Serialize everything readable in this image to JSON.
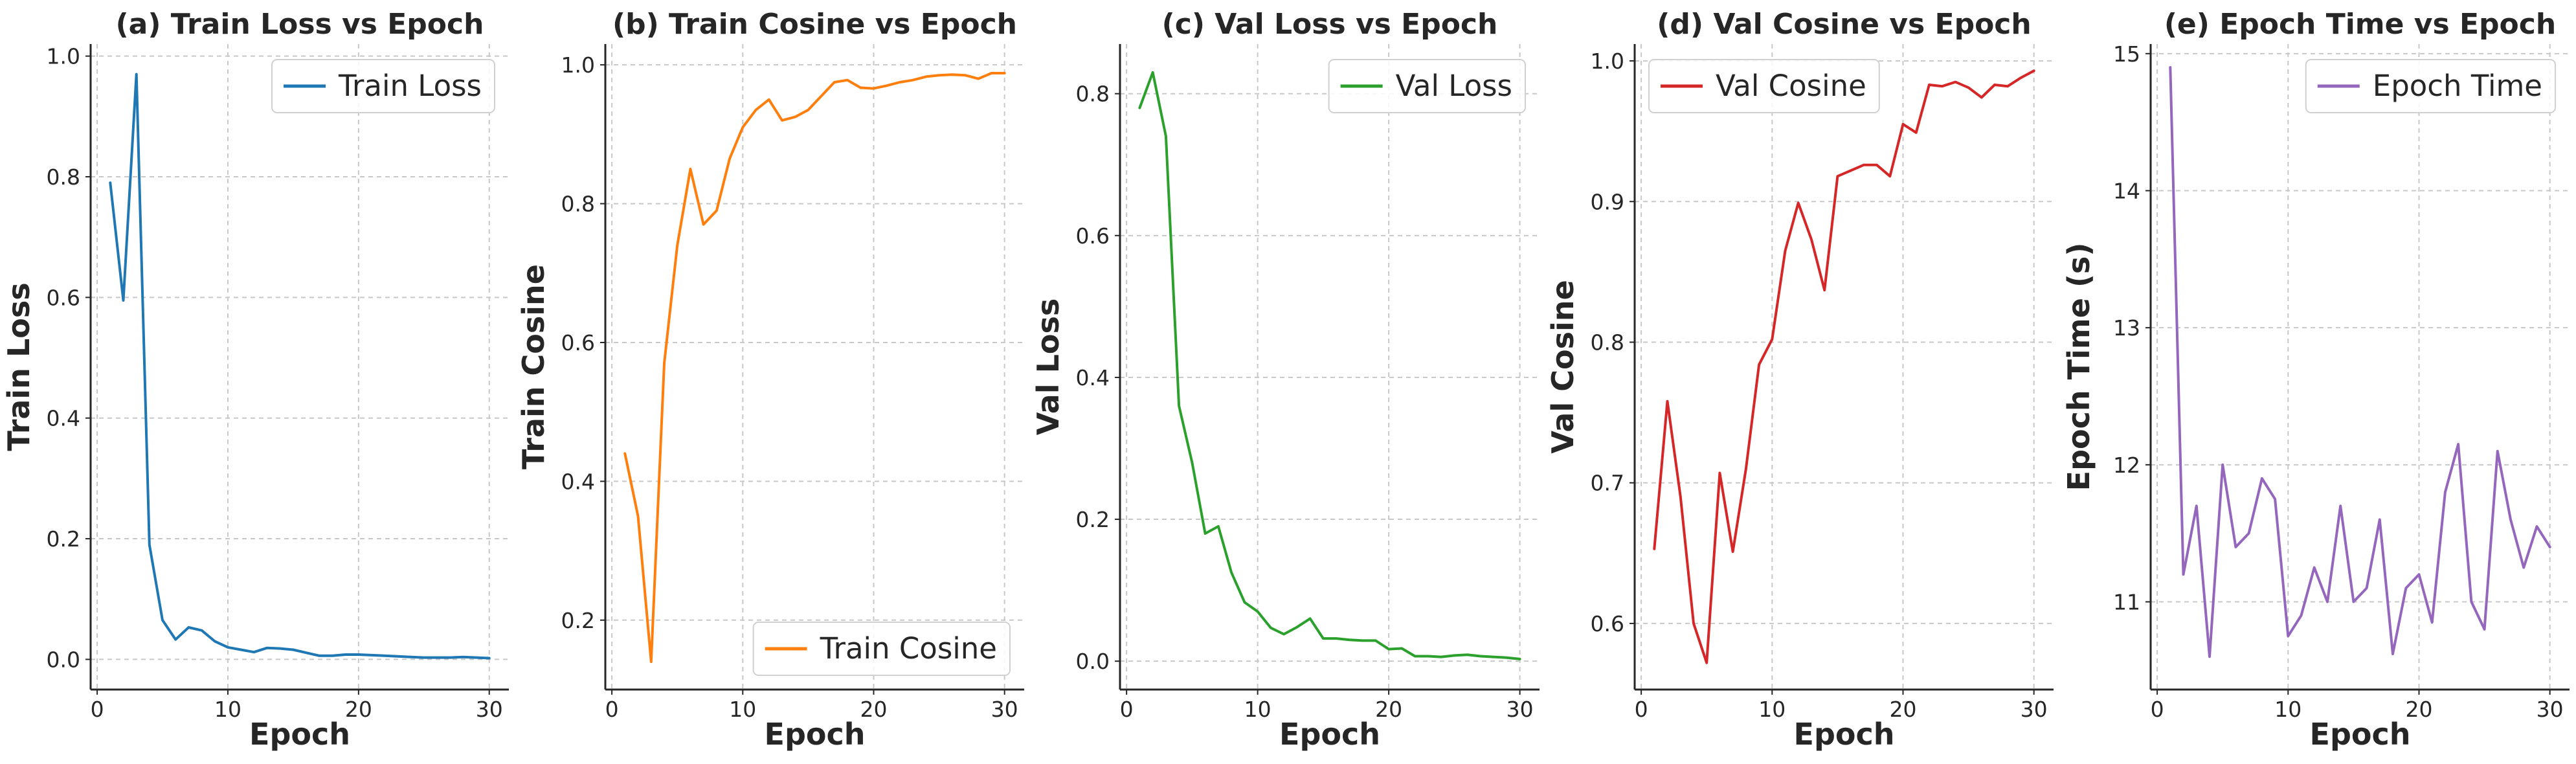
{
  "chart_data": [
    {
      "type": "line",
      "title": "(a) Train Loss vs Epoch",
      "xlabel": "Epoch",
      "ylabel": "Train Loss",
      "xlim": [
        -0.5,
        31.5
      ],
      "ylim": [
        -0.05,
        1.02
      ],
      "xticks": [
        0,
        10,
        20,
        30
      ],
      "yticks": [
        0.0,
        0.2,
        0.4,
        0.6,
        0.8,
        1.0
      ],
      "ytick_labels": [
        "0.0",
        "0.2",
        "0.4",
        "0.6",
        "0.8",
        "1.0"
      ],
      "grid": true,
      "legend_position": "upper right",
      "color": "#1f77b4",
      "series": [
        {
          "name": "Train Loss",
          "x": [
            1,
            2,
            3,
            4,
            5,
            6,
            7,
            8,
            9,
            10,
            11,
            12,
            13,
            14,
            15,
            16,
            17,
            18,
            19,
            20,
            21,
            22,
            23,
            24,
            25,
            26,
            27,
            28,
            29,
            30
          ],
          "values": [
            0.79,
            0.595,
            0.97,
            0.19,
            0.065,
            0.033,
            0.053,
            0.048,
            0.03,
            0.02,
            0.016,
            0.012,
            0.019,
            0.018,
            0.016,
            0.011,
            0.006,
            0.006,
            0.008,
            0.008,
            0.007,
            0.006,
            0.005,
            0.004,
            0.003,
            0.003,
            0.003,
            0.004,
            0.003,
            0.002
          ]
        }
      ]
    },
    {
      "type": "line",
      "title": "(b) Train Cosine vs Epoch",
      "xlabel": "Epoch",
      "ylabel": "Train Cosine",
      "xlim": [
        -0.5,
        31.5
      ],
      "ylim": [
        0.1,
        1.03
      ],
      "xticks": [
        0,
        10,
        20,
        30
      ],
      "yticks": [
        0.2,
        0.4,
        0.6,
        0.8,
        1.0
      ],
      "ytick_labels": [
        "0.2",
        "0.4",
        "0.6",
        "0.8",
        "1.0"
      ],
      "grid": true,
      "legend_position": "lower right",
      "color": "#ff7f0e",
      "series": [
        {
          "name": "Train Cosine",
          "x": [
            1,
            2,
            3,
            4,
            5,
            6,
            7,
            8,
            9,
            10,
            11,
            12,
            13,
            14,
            15,
            16,
            17,
            18,
            19,
            20,
            21,
            22,
            23,
            24,
            25,
            26,
            27,
            28,
            29,
            30
          ],
          "values": [
            0.44,
            0.35,
            0.14,
            0.57,
            0.74,
            0.85,
            0.77,
            0.79,
            0.865,
            0.91,
            0.935,
            0.95,
            0.92,
            0.925,
            0.935,
            0.955,
            0.975,
            0.978,
            0.967,
            0.966,
            0.97,
            0.975,
            0.978,
            0.983,
            0.985,
            0.986,
            0.985,
            0.98,
            0.988,
            0.988
          ]
        }
      ]
    },
    {
      "type": "line",
      "title": "(c) Val Loss vs Epoch",
      "xlabel": "Epoch",
      "ylabel": "Val Loss",
      "xlim": [
        -0.5,
        31.5
      ],
      "ylim": [
        -0.04,
        0.87
      ],
      "xticks": [
        0,
        10,
        20,
        30
      ],
      "yticks": [
        0.0,
        0.2,
        0.4,
        0.6,
        0.8
      ],
      "ytick_labels": [
        "0.0",
        "0.2",
        "0.4",
        "0.6",
        "0.8"
      ],
      "grid": true,
      "legend_position": "upper right",
      "color": "#2ca02c",
      "series": [
        {
          "name": "Val Loss",
          "x": [
            1,
            2,
            3,
            4,
            5,
            6,
            7,
            8,
            9,
            10,
            11,
            12,
            13,
            14,
            15,
            16,
            17,
            18,
            19,
            20,
            21,
            22,
            23,
            24,
            25,
            26,
            27,
            28,
            29,
            30
          ],
          "values": [
            0.78,
            0.83,
            0.74,
            0.36,
            0.28,
            0.18,
            0.19,
            0.125,
            0.083,
            0.07,
            0.047,
            0.038,
            0.048,
            0.06,
            0.032,
            0.032,
            0.03,
            0.029,
            0.029,
            0.017,
            0.018,
            0.007,
            0.007,
            0.006,
            0.008,
            0.009,
            0.007,
            0.006,
            0.005,
            0.003
          ]
        }
      ]
    },
    {
      "type": "line",
      "title": "(d) Val Cosine vs Epoch",
      "xlabel": "Epoch",
      "ylabel": "Val Cosine",
      "xlim": [
        -0.5,
        31.5
      ],
      "ylim": [
        0.553,
        1.012
      ],
      "xticks": [
        0,
        10,
        20,
        30
      ],
      "yticks": [
        0.6,
        0.7,
        0.8,
        0.9,
        1.0
      ],
      "ytick_labels": [
        "0.6",
        "0.7",
        "0.8",
        "0.9",
        "1.0"
      ],
      "grid": true,
      "legend_position": "upper left",
      "color": "#d62728",
      "series": [
        {
          "name": "Val Cosine",
          "x": [
            1,
            2,
            3,
            4,
            5,
            6,
            7,
            8,
            9,
            10,
            11,
            12,
            13,
            14,
            15,
            16,
            17,
            18,
            19,
            20,
            21,
            22,
            23,
            24,
            25,
            26,
            27,
            28,
            29,
            30
          ],
          "values": [
            0.653,
            0.758,
            0.69,
            0.6,
            0.572,
            0.707,
            0.651,
            0.71,
            0.784,
            0.802,
            0.865,
            0.899,
            0.873,
            0.837,
            0.918,
            0.922,
            0.926,
            0.926,
            0.918,
            0.955,
            0.949,
            0.983,
            0.982,
            0.985,
            0.981,
            0.974,
            0.983,
            0.982,
            0.988,
            0.993
          ]
        }
      ]
    },
    {
      "type": "line",
      "title": "(e) Epoch Time vs Epoch",
      "xlabel": "Epoch",
      "ylabel": "Epoch Time (s)",
      "xlim": [
        -0.5,
        31.5
      ],
      "ylim": [
        10.36,
        15.07
      ],
      "xticks": [
        0,
        10,
        20,
        30
      ],
      "yticks": [
        11,
        12,
        13,
        14,
        15
      ],
      "ytick_labels": [
        "11",
        "12",
        "13",
        "14",
        "15"
      ],
      "grid": true,
      "legend_position": "upper right",
      "color": "#9467bd",
      "series": [
        {
          "name": "Epoch Time",
          "x": [
            1,
            2,
            3,
            4,
            5,
            6,
            7,
            8,
            9,
            10,
            11,
            12,
            13,
            14,
            15,
            16,
            17,
            18,
            19,
            20,
            21,
            22,
            23,
            24,
            25,
            26,
            27,
            28,
            29,
            30
          ],
          "values": [
            14.9,
            11.2,
            11.7,
            10.6,
            12.0,
            11.4,
            11.5,
            11.9,
            11.75,
            10.75,
            10.9,
            11.25,
            11.0,
            11.7,
            11.0,
            11.1,
            11.6,
            10.62,
            11.1,
            11.2,
            10.85,
            11.8,
            12.15,
            11.0,
            10.8,
            12.1,
            11.6,
            11.25,
            11.55,
            11.4
          ]
        }
      ]
    }
  ]
}
